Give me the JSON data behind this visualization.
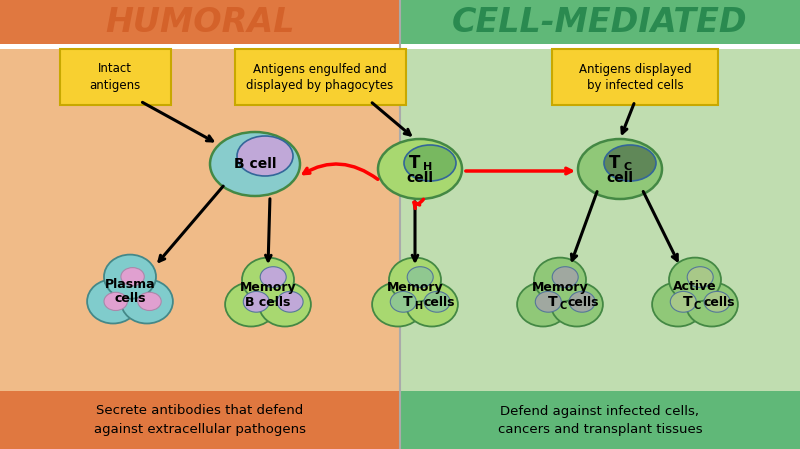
{
  "title_left": "HUMORAL",
  "title_right": "CELL-MEDIATED",
  "title_left_color": "#D4622A",
  "title_right_color": "#2A8A50",
  "bg_left": "#F0BB88",
  "bg_right": "#C0DDB0",
  "header_bg_left": "#E07840",
  "header_bg_right": "#60B878",
  "label_box_color": "#F8D030",
  "label_box_border": "#C8A800",
  "label_box_left": "Intact\nantigens",
  "label_box_center": "Antigens engulfed and\ndisplayed by phagocytes",
  "label_box_right": "Antigens displayed\nby infected cells",
  "footer_left": "Secrete antibodies that defend\nagainst extracellular pathogens",
  "footer_right": "Defend against infected cells,\ncancers and transplant tissues",
  "footer_bg_left": "#E07840",
  "footer_bg_right": "#60B878",
  "divider_color": "#AAAAAA"
}
